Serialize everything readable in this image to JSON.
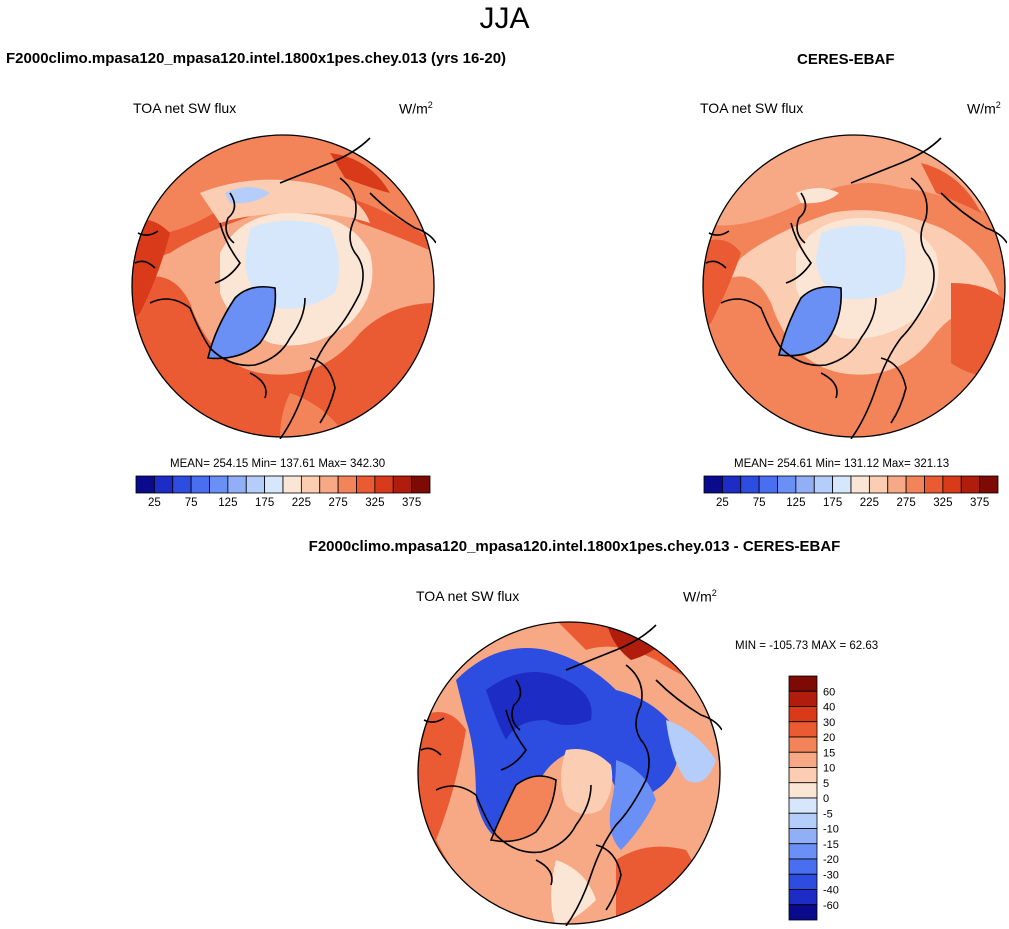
{
  "figure": {
    "season": "JJA",
    "diff_title": "F2000climo.mpasa120_mpasa120.intel.1800x1pes.chey.013 - CERES-EBAF"
  },
  "panels": {
    "model": {
      "title": "F2000climo.mpasa120_mpasa120.intel.1800x1pes.chey.013 (yrs 16-20)",
      "field": "TOA net SW flux",
      "units_base": "W/m",
      "units_exp": "2",
      "stats": "MEAN= 254.15  Min= 137.61  Max= 342.30"
    },
    "obs": {
      "title": "CERES-EBAF",
      "field": "TOA net SW flux",
      "units_base": "W/m",
      "units_exp": "2",
      "stats": "MEAN= 254.61  Min= 131.12  Max= 321.13"
    },
    "diff": {
      "field": "TOA net SW flux",
      "units_base": "W/m",
      "units_exp": "2",
      "stats": "MIN = -105.73 MAX =  62.63"
    }
  },
  "chart_data": [
    {
      "type": "heatmap",
      "projection": "north polar stereographic",
      "title": "F2000climo.mpasa120_mpasa120.intel.1800x1pes.chey.013 (yrs 16-20)",
      "field": "TOA net SW flux",
      "units": "W/m2",
      "mean": 254.15,
      "min": 137.61,
      "max": 342.3,
      "colorbar": {
        "levels": [
          25,
          50,
          75,
          100,
          125,
          150,
          175,
          200,
          225,
          250,
          275,
          300,
          325,
          350,
          375
        ],
        "tick_labels": [
          "25",
          "75",
          "125",
          "175",
          "225",
          "275",
          "325",
          "375"
        ],
        "colors": [
          "#0a0a8c",
          "#1c2cc4",
          "#2c4ddf",
          "#4a6ef0",
          "#6a8ff5",
          "#91aff7",
          "#b5cdfa",
          "#d6e7fb",
          "#fbe6d6",
          "#fbcdb2",
          "#f7a884",
          "#f3845a",
          "#ea5a33",
          "#d83a1a",
          "#b01d0c",
          "#7d0a05"
        ]
      }
    },
    {
      "type": "heatmap",
      "projection": "north polar stereographic",
      "title": "CERES-EBAF",
      "field": "TOA net SW flux",
      "units": "W/m2",
      "mean": 254.61,
      "min": 131.12,
      "max": 321.13,
      "colorbar": {
        "levels": [
          25,
          50,
          75,
          100,
          125,
          150,
          175,
          200,
          225,
          250,
          275,
          300,
          325,
          350,
          375
        ],
        "tick_labels": [
          "25",
          "75",
          "125",
          "175",
          "225",
          "275",
          "325",
          "375"
        ],
        "colors": [
          "#0a0a8c",
          "#1c2cc4",
          "#2c4ddf",
          "#4a6ef0",
          "#6a8ff5",
          "#91aff7",
          "#b5cdfa",
          "#d6e7fb",
          "#fbe6d6",
          "#fbcdb2",
          "#f7a884",
          "#f3845a",
          "#ea5a33",
          "#d83a1a",
          "#b01d0c",
          "#7d0a05"
        ]
      }
    },
    {
      "type": "heatmap",
      "projection": "north polar stereographic",
      "title": "F2000climo.mpasa120_mpasa120.intel.1800x1pes.chey.013 - CERES-EBAF",
      "field": "TOA net SW flux",
      "units": "W/m2",
      "min": -105.73,
      "max": 62.63,
      "colorbar": {
        "orientation": "vertical",
        "tick_labels": [
          "60",
          "40",
          "30",
          "20",
          "15",
          "10",
          "5",
          "0",
          "-5",
          "-10",
          "-15",
          "-20",
          "-30",
          "-40",
          "-60"
        ],
        "colors": [
          "#7d0a05",
          "#b01d0c",
          "#d83a1a",
          "#ea5a33",
          "#f3845a",
          "#f7a884",
          "#fbcdb2",
          "#fbe6d6",
          "#d6e7fb",
          "#b5cdfa",
          "#91aff7",
          "#6a8ff5",
          "#4a6ef0",
          "#2c4ddf",
          "#1c2cc4",
          "#0a0a8c"
        ]
      }
    }
  ]
}
